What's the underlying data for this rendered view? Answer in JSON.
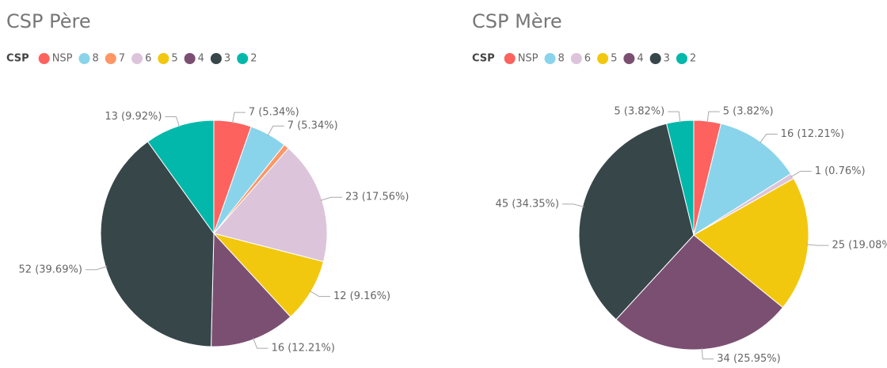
{
  "chart_data": [
    {
      "type": "pie",
      "title": "CSP Père",
      "legend_title": "CSP",
      "categories": [
        "NSP",
        "8",
        "7",
        "6",
        "5",
        "4",
        "3",
        "2"
      ],
      "values": [
        7,
        7,
        1,
        23,
        12,
        16,
        52,
        13
      ],
      "value_labels": [
        "7 (5.34%)",
        "7 (5.34%)",
        null,
        "23 (17.56%)",
        "12 (9.16%)",
        "16 (12.21%)",
        "52 (39.69%)",
        "13 (9.92%)"
      ],
      "colors": [
        "#fd625e",
        "#8ad4eb",
        "#fe9666",
        "#dcc4da",
        "#f2c80f",
        "#7b4f72",
        "#374649",
        "#01b8aa"
      ]
    },
    {
      "type": "pie",
      "title": "CSP Mère",
      "legend_title": "CSP",
      "categories": [
        "NSP",
        "8",
        "6",
        "5",
        "4",
        "3",
        "2"
      ],
      "values": [
        5,
        16,
        1,
        25,
        34,
        45,
        5
      ],
      "value_labels": [
        "5 (3.82%)",
        "16 (12.21%)",
        "1 (0.76%)",
        "25 (19.08%)",
        "34 (25.95%)",
        "45 (34.35%)",
        "5 (3.82%)"
      ],
      "colors": [
        "#fd625e",
        "#8ad4eb",
        "#dcc4da",
        "#f2c80f",
        "#7b4f72",
        "#374649",
        "#01b8aa"
      ]
    }
  ]
}
